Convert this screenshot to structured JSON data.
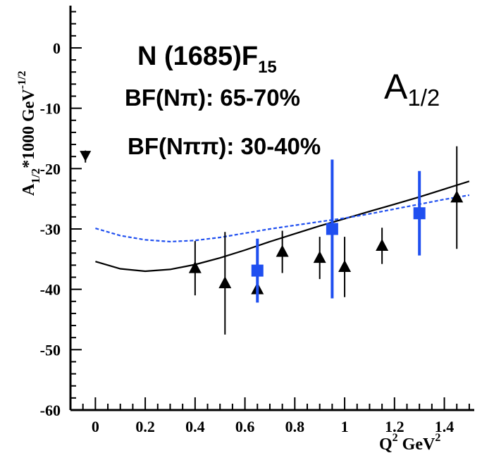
{
  "chart_data": {
    "type": "scatter",
    "xlabel": "Q",
    "xlabel_sup": "2",
    "xlabel_unit": "GeV",
    "xlabel_unit_sup": "2",
    "ylabel_main": "A",
    "ylabel_sub": "1/2",
    "ylabel_rest": "*1000 GeV",
    "ylabel_exp": "-1/2",
    "xlim": [
      -0.1,
      1.52
    ],
    "ylim": [
      -60,
      7
    ],
    "x_ticks": [
      0,
      0.2,
      0.4,
      0.6,
      0.8,
      1,
      1.2,
      1.4
    ],
    "x_tick_labels": [
      "0",
      "0.2",
      "0.4",
      "0.6",
      "0.8",
      "1",
      "1.2",
      "1.4"
    ],
    "y_ticks": [
      0,
      -10,
      -20,
      -30,
      -40,
      -50,
      -60
    ],
    "y_tick_labels": [
      "0",
      "-10",
      "-20",
      "-30",
      "-40",
      "-50",
      "-60"
    ],
    "annotations": {
      "resonance_name": "N (1685)F",
      "resonance_sub": "15",
      "bf_npi": "BF(Nπ): 65-70%",
      "bf_npipi": "BF(Nππ): 30-40%",
      "amp_main": "A",
      "amp_sub": "1/2"
    },
    "series": [
      {
        "marker": "triangle",
        "color": "#000000",
        "points": [
          {
            "x": 0.4,
            "y": -36.5,
            "err": 4.5
          },
          {
            "x": 0.52,
            "y": -39.0,
            "err": 8.5
          },
          {
            "x": 0.65,
            "y": -40.0,
            "err": 2.0
          },
          {
            "x": 0.75,
            "y": -33.8,
            "err": 3.5
          },
          {
            "x": 0.9,
            "y": -34.8,
            "err": 3.5
          },
          {
            "x": 1.0,
            "y": -36.3,
            "err": 5.0
          },
          {
            "x": 1.15,
            "y": -32.8,
            "err": 3.0
          },
          {
            "x": 1.45,
            "y": -24.8,
            "err": 8.5
          }
        ]
      },
      {
        "marker": "square",
        "color": "#1f4ff0",
        "points": [
          {
            "x": 0.65,
            "y": -36.9,
            "err": 5.3
          },
          {
            "x": 0.95,
            "y": -30.0,
            "err": 11.5
          },
          {
            "x": 1.3,
            "y": -27.4,
            "err": 7.0
          }
        ]
      },
      {
        "marker": "down-triangle",
        "color": "#000000",
        "points": [
          {
            "x": -0.04,
            "y": -18.0,
            "err": 1.0
          }
        ]
      }
    ],
    "curves": [
      {
        "style": "solid",
        "color": "#000000",
        "x": [
          0.0,
          0.1,
          0.2,
          0.3,
          0.4,
          0.5,
          0.6,
          0.7,
          0.8,
          0.9,
          1.0,
          1.1,
          1.2,
          1.3,
          1.4,
          1.5
        ],
        "y": [
          -35.4,
          -36.6,
          -37.0,
          -36.7,
          -35.9,
          -34.8,
          -33.5,
          -32.1,
          -30.8,
          -29.5,
          -28.3,
          -27.1,
          -25.9,
          -24.7,
          -23.4,
          -22.1
        ]
      },
      {
        "style": "dashed",
        "color": "#1f4ff0",
        "x": [
          0.0,
          0.1,
          0.2,
          0.3,
          0.4,
          0.5,
          0.6,
          0.7,
          0.8,
          0.9,
          1.0,
          1.1,
          1.2,
          1.3,
          1.4,
          1.5
        ],
        "y": [
          -29.9,
          -31.1,
          -31.8,
          -32.1,
          -31.9,
          -31.4,
          -30.7,
          -30.0,
          -29.4,
          -28.8,
          -28.2,
          -27.5,
          -26.7,
          -25.9,
          -25.1,
          -24.4
        ]
      }
    ]
  }
}
